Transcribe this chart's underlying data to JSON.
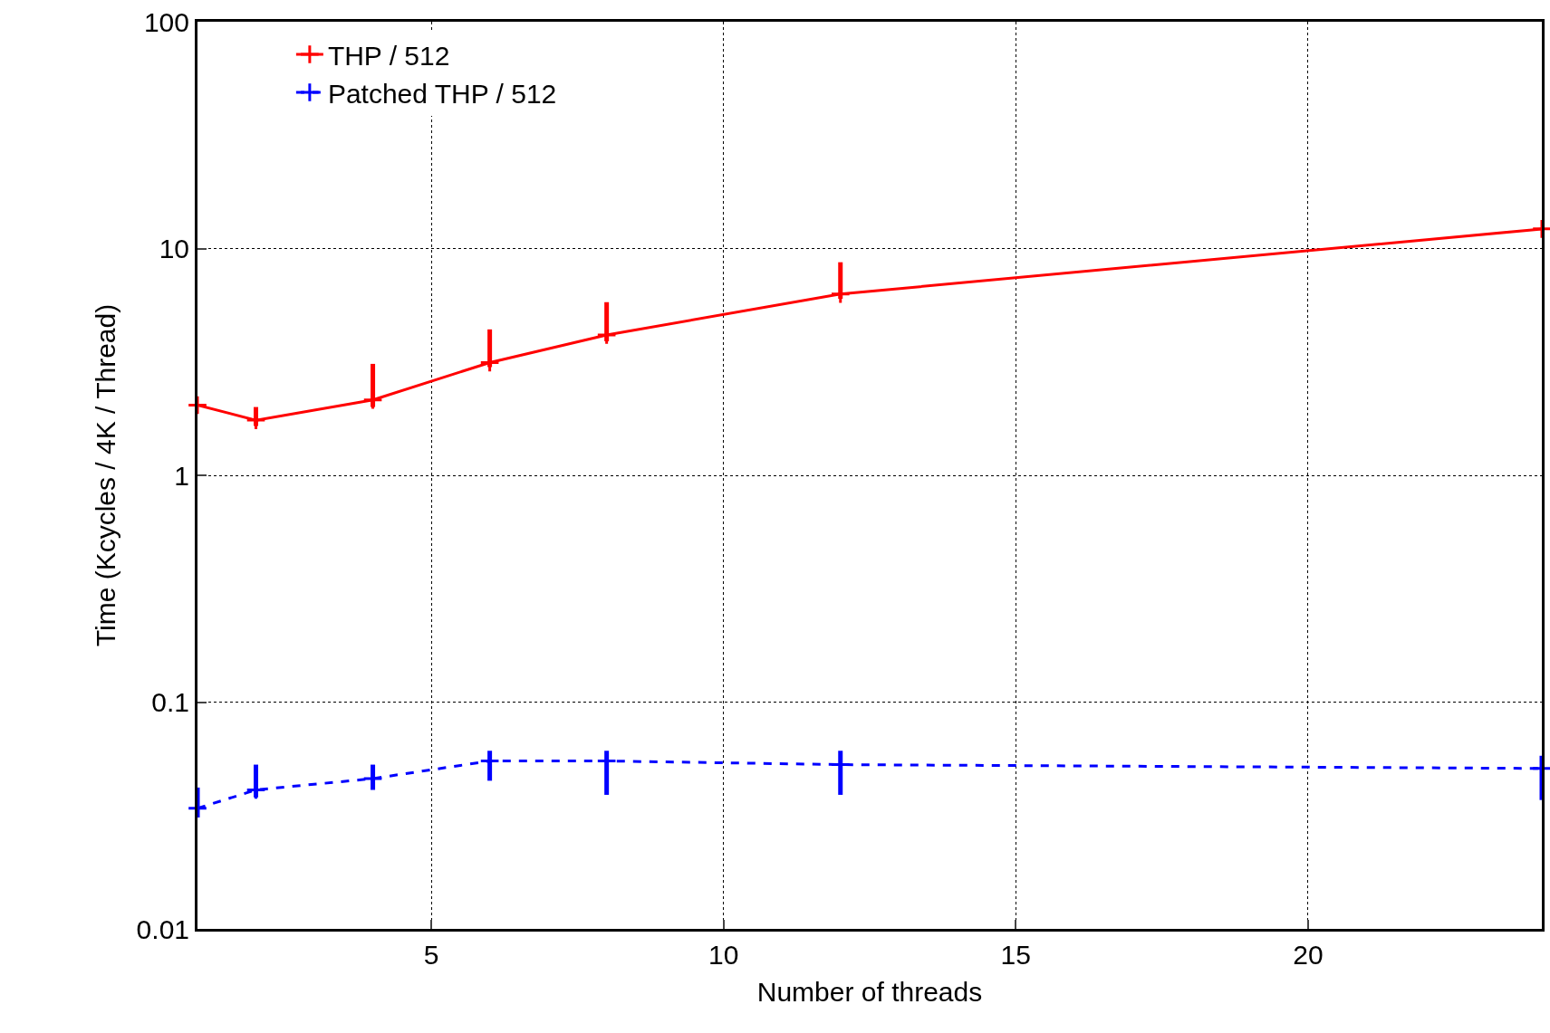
{
  "chart_data": {
    "type": "line",
    "xlabel": "Number of threads",
    "ylabel": "Time (Kcycles / 4K / Thread)",
    "x": [
      1,
      2,
      4,
      6,
      8,
      12,
      24
    ],
    "series": [
      {
        "name": "THP / 512",
        "color": "#ff0000",
        "line_style": "solid",
        "values": [
          2.04,
          1.75,
          2.15,
          3.14,
          4.16,
          6.3,
          12.2
        ],
        "errors": [
          null,
          [
            1.65,
            2.0
          ],
          [
            2.0,
            3.1
          ],
          [
            3.0,
            4.4
          ],
          [
            3.9,
            5.8
          ],
          [
            6.0,
            8.7
          ],
          null
        ]
      },
      {
        "name": "Patched THP / 512",
        "color": "#0000ff",
        "line_style": "dashed",
        "values": [
          0.034,
          0.041,
          0.046,
          0.055,
          0.055,
          0.053,
          0.051
        ],
        "errors": [
          [
            0.031,
            0.042
          ],
          [
            0.038,
            0.053
          ],
          [
            0.041,
            0.053
          ],
          [
            0.045,
            0.061
          ],
          [
            0.039,
            0.061
          ],
          [
            0.039,
            0.061
          ],
          [
            0.037,
            0.058
          ]
        ]
      }
    ],
    "log": true,
    "xlim": [
      1,
      24
    ],
    "xticks": [
      5,
      10,
      15,
      20
    ],
    "ylim": [
      0.01,
      100
    ],
    "yticks": [
      0.01,
      0.1,
      1,
      10,
      100
    ],
    "grid": true,
    "legend": "top left",
    "marker": "cross"
  }
}
